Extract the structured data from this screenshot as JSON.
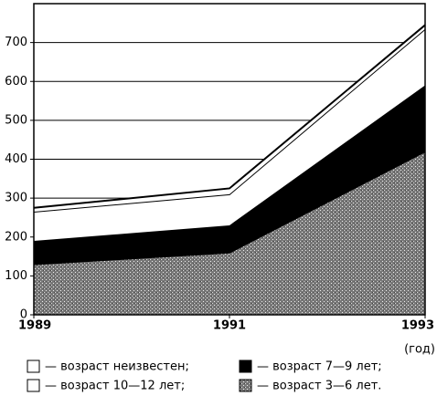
{
  "chart_data": {
    "type": "stacked-area",
    "x": [
      1989,
      1991,
      1993
    ],
    "xlabel": "(год)",
    "xlim": [
      1989,
      1993
    ],
    "xticks": [
      1989,
      1991,
      1993
    ],
    "ylim": [
      0,
      800
    ],
    "yticks": [
      0,
      100,
      200,
      300,
      400,
      500,
      600,
      700
    ],
    "grid": true,
    "series": [
      {
        "name": "— возраст 3—6 лет.",
        "color": "#9c9c9c",
        "values": [
          130,
          160,
          420
        ]
      },
      {
        "name": "— возраст 7—9 лет;",
        "color": "#000000",
        "values": [
          60,
          70,
          170
        ]
      },
      {
        "name": "— возраст 10—12 лет;",
        "color": "#ffffff",
        "values": [
          75,
          80,
          145
        ]
      },
      {
        "name": "— возраст неизвестен;",
        "color": "#ffffff",
        "values": [
          10,
          15,
          10
        ]
      }
    ]
  }
}
